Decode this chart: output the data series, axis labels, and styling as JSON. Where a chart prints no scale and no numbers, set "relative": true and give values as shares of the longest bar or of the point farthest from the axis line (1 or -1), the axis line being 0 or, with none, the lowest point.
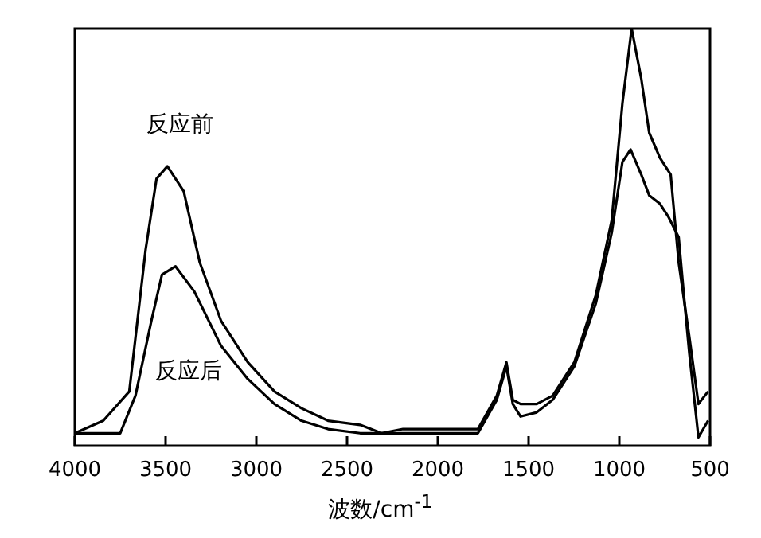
{
  "chart_data": {
    "type": "line",
    "xlabel": "波数/cm$^{-1}$",
    "relative": true,
    "xlim": [
      4000,
      500
    ],
    "xticks": [
      4000,
      3500,
      3000,
      2500,
      2000,
      1500,
      1000,
      500
    ],
    "grid": false,
    "legend": false,
    "marker": "none",
    "line_style": "solid",
    "series": [
      {
        "name": "反应前",
        "color": "#000000",
        "x": [
          4000,
          3843,
          3700,
          3610,
          3550,
          3490,
          3400,
          3312,
          3195,
          3047,
          2900,
          2752,
          2605,
          2428,
          2310,
          2192,
          2015,
          1779,
          1675,
          1622,
          1587,
          1544,
          1455,
          1367,
          1248,
          1130,
          1042,
          983,
          932,
          879,
          835,
          776,
          717,
          673,
          614,
          564,
          511
        ],
        "values": [
          0.03,
          0.06,
          0.13,
          0.47,
          0.64,
          0.67,
          0.61,
          0.44,
          0.3,
          0.2,
          0.13,
          0.09,
          0.06,
          0.05,
          0.03,
          0.04,
          0.04,
          0.04,
          0.12,
          0.2,
          0.11,
          0.1,
          0.1,
          0.12,
          0.2,
          0.36,
          0.54,
          0.82,
          1,
          0.88,
          0.75,
          0.69,
          0.65,
          0.44,
          0.26,
          0.1,
          0.13
        ]
      },
      {
        "name": "反应后",
        "color": "#000000",
        "x": [
          4000,
          3750,
          3666,
          3578,
          3520,
          3445,
          3342,
          3195,
          3047,
          2900,
          2752,
          2605,
          2428,
          2300,
          2100,
          1779,
          1675,
          1622,
          1587,
          1544,
          1455,
          1367,
          1248,
          1130,
          1042,
          983,
          938,
          879,
          835,
          776,
          731,
          673,
          644,
          614,
          564,
          511
        ],
        "values": [
          0.03,
          0.03,
          0.12,
          0.3,
          0.41,
          0.43,
          0.37,
          0.24,
          0.16,
          0.1,
          0.06,
          0.04,
          0.03,
          0.03,
          0.03,
          0.03,
          0.11,
          0.19,
          0.1,
          0.07,
          0.08,
          0.11,
          0.19,
          0.34,
          0.51,
          0.68,
          0.71,
          0.65,
          0.6,
          0.58,
          0.55,
          0.5,
          0.36,
          0.22,
          0.02,
          0.06
        ]
      }
    ]
  }
}
